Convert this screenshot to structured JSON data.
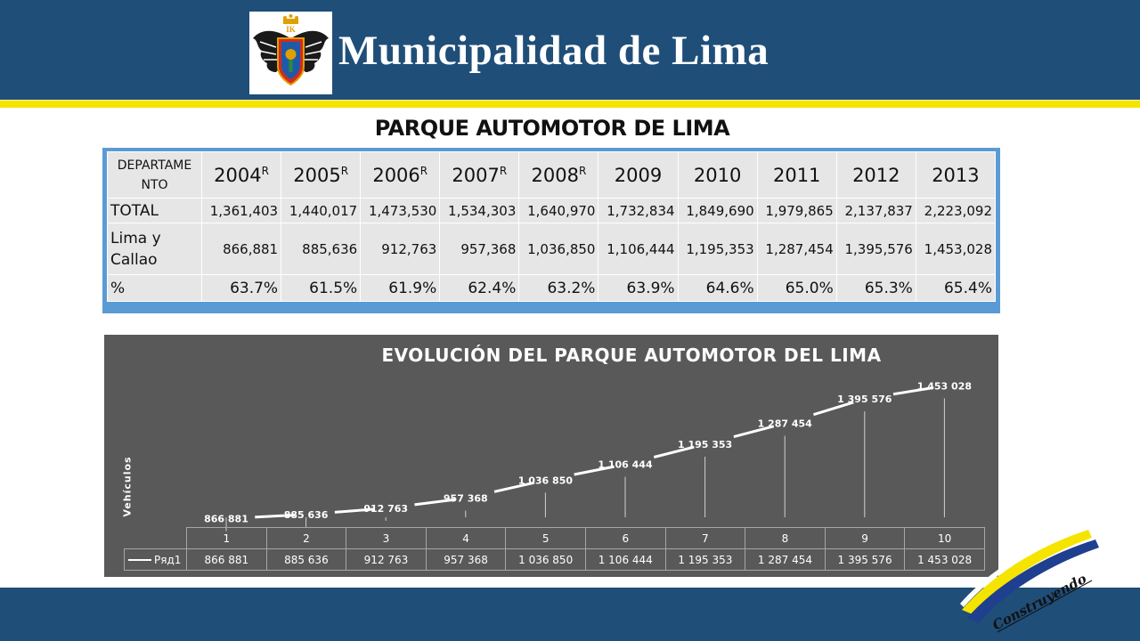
{
  "header": {
    "title": "Municipalidad de Lima",
    "crest_letters": "IK",
    "colors": {
      "band": "#1f4e79",
      "stripe": "#f5e400"
    }
  },
  "page_title": "PARQUE AUTOMOTOR DE LIMA",
  "table": {
    "corner": "DEPARTAME NTO",
    "years": [
      {
        "year": "2004",
        "sup": "R"
      },
      {
        "year": "2005",
        "sup": "R"
      },
      {
        "year": "2006",
        "sup": "R"
      },
      {
        "year": "2007",
        "sup": "R"
      },
      {
        "year": "2008",
        "sup": "R"
      },
      {
        "year": "2009",
        "sup": ""
      },
      {
        "year": "2010",
        "sup": ""
      },
      {
        "year": "2011",
        "sup": ""
      },
      {
        "year": "2012",
        "sup": ""
      },
      {
        "year": "2013",
        "sup": ""
      }
    ],
    "rows": [
      {
        "label": "TOTAL",
        "values": [
          "1,361,403",
          "1,440,017",
          "1,473,530",
          "1,534,303",
          "1,640,970",
          "1,732,834",
          "1,849,690",
          "1,979,865",
          "2,137,837",
          "2,223,092"
        ]
      },
      {
        "label": "Lima y Callao",
        "values": [
          "866,881",
          "885,636",
          "912,763",
          "957,368",
          "1,036,850",
          "1,106,444",
          "1,195,353",
          "1,287,454",
          "1,395,576",
          "1,453,028"
        ]
      },
      {
        "label": "%",
        "values": [
          "63.7%",
          "61.5%",
          "61.9%",
          "62.4%",
          "63.2%",
          "63.9%",
          "64.6%",
          "65.0%",
          "65.3%",
          "65.4%"
        ]
      }
    ]
  },
  "chart_data": {
    "type": "line",
    "title": "EVOLUCIÓN DEL PARQUE AUTOMOTOR DEL LIMA",
    "ylabel": "Vehículos",
    "xlabel": "",
    "categories": [
      "1",
      "2",
      "3",
      "4",
      "5",
      "6",
      "7",
      "8",
      "9",
      "10"
    ],
    "series": [
      {
        "name": "Ряд1",
        "values": [
          866881,
          885636,
          912763,
          957368,
          1036850,
          1106444,
          1195353,
          1287454,
          1395576,
          1453028
        ],
        "labels": [
          "866 881",
          "885 636",
          "912 763",
          "957 368",
          "1 036 850",
          "1 106 444",
          "1 195 353",
          "1 287 454",
          "1 395 576",
          "1 453 028"
        ]
      }
    ],
    "data_table": true,
    "legend": "in data table",
    "grid": false,
    "colors": {
      "background": "#595959",
      "line": "#ffffff"
    }
  },
  "footer": {
    "logo_text": "Construyendo",
    "colors": {
      "band": "#1f4e79",
      "logo_yellow": "#f5e400",
      "logo_blue": "#1f3f8f"
    }
  }
}
